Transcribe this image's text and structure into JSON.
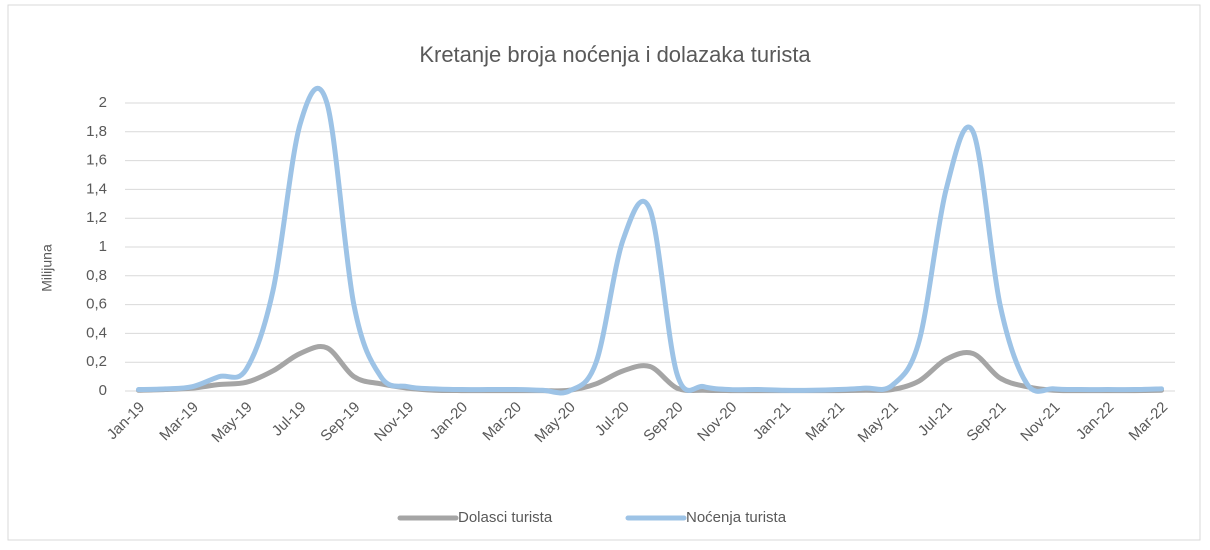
{
  "chart_data": {
    "type": "line",
    "title": "Kretanje broja noćenja i dolazaka turista",
    "y_label": "Milijuna",
    "categories": [
      "Jan-19",
      null,
      "Mar-19",
      null,
      "May-19",
      null,
      "Jul-19",
      null,
      "Sep-19",
      null,
      "Nov-19",
      null,
      "Jan-20",
      null,
      "Mar-20",
      null,
      "May-20",
      null,
      "Jul-20",
      null,
      "Sep-20",
      null,
      "Nov-20",
      null,
      "Jan-21",
      null,
      "Mar-21",
      null,
      "May-21",
      null,
      "Jul-21",
      null,
      "Sep-21",
      null,
      "Nov-21",
      null,
      "Jan-22",
      null,
      "Mar-22"
    ],
    "series": [
      {
        "name": "Dolasci turista",
        "color": "#a5a5a5",
        "values": [
          0.005,
          0.01,
          0.02,
          0.045,
          0.06,
          0.14,
          0.26,
          0.3,
          0.1,
          0.05,
          0.02,
          0.005,
          0.003,
          0.003,
          0.003,
          0.003,
          0.005,
          0.05,
          0.14,
          0.17,
          0.02,
          0.005,
          0.003,
          0.003,
          0.003,
          0.003,
          0.003,
          0.005,
          0.01,
          0.07,
          0.22,
          0.26,
          0.09,
          0.03,
          0.005,
          0.003,
          0.003,
          0.003,
          0.005
        ]
      },
      {
        "name": "Noćenja turista",
        "color": "#9dc3e6",
        "values": [
          0.01,
          0.015,
          0.03,
          0.1,
          0.15,
          0.7,
          1.85,
          2.0,
          0.6,
          0.1,
          0.03,
          0.015,
          0.01,
          0.01,
          0.01,
          0.005,
          0.0,
          0.2,
          1.05,
          1.26,
          0.12,
          0.03,
          0.01,
          0.01,
          0.005,
          0.005,
          0.01,
          0.02,
          0.04,
          0.35,
          1.4,
          1.8,
          0.6,
          0.05,
          0.015,
          0.01,
          0.01,
          0.01,
          0.015
        ]
      }
    ],
    "ylim": [
      0,
      2
    ],
    "yticks": [
      0,
      {
        "value": 0.2,
        "label": "0,2"
      },
      {
        "value": 0.4,
        "label": "0,4"
      },
      {
        "value": 0.6,
        "label": "0,6"
      },
      {
        "value": 0.8,
        "label": "0,8"
      },
      1,
      {
        "value": 1.2,
        "label": "1,2"
      },
      {
        "value": 1.4,
        "label": "1,4"
      },
      {
        "value": 1.6,
        "label": "1,6"
      },
      {
        "value": 1.8,
        "label": "1,8"
      },
      2
    ],
    "grid": true,
    "legend": "bottom"
  }
}
